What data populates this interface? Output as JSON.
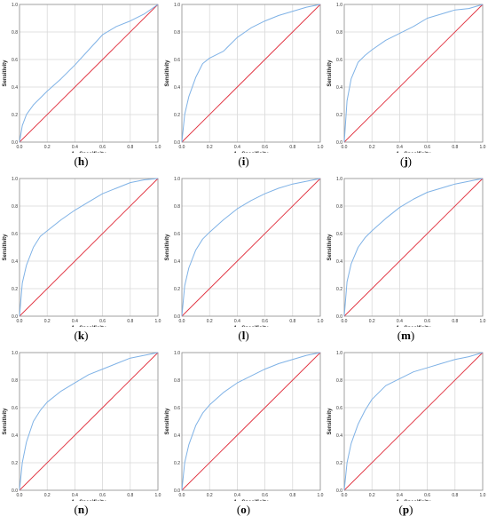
{
  "figure": {
    "x_axis_label": "1 - Specificity",
    "y_axis_label": "Sensitivity",
    "tick_labels": [
      "0.0",
      "0.2",
      "0.4",
      "0.6",
      "0.8",
      "1.0"
    ],
    "colors": {
      "roc": "#7fb2e6",
      "reference": "#e0303e",
      "grid": "#d9d9d9",
      "frame": "#8a8a8a"
    }
  },
  "chart_data": [
    {
      "panel": "h",
      "label_letter": "h",
      "type": "line",
      "xlabel": "1 - Specificity",
      "ylabel": "Sensitivity",
      "xlim": [
        0,
        1
      ],
      "ylim": [
        0,
        1
      ],
      "grid": true,
      "series": [
        {
          "x": [
            0,
            0.02,
            0.05,
            0.1,
            0.15,
            0.2,
            0.3,
            0.4,
            0.5,
            0.6,
            0.7,
            0.8,
            0.9,
            1.0
          ],
          "y": [
            0,
            0.12,
            0.2,
            0.27,
            0.32,
            0.37,
            0.46,
            0.56,
            0.67,
            0.78,
            0.84,
            0.88,
            0.93,
            1.0
          ]
        },
        {
          "x": [
            0,
            1
          ],
          "y": [
            0,
            1
          ]
        }
      ]
    },
    {
      "panel": "i",
      "label_letter": "i",
      "type": "line",
      "xlabel": "1 - Specificity",
      "ylabel": "Sensitivity",
      "xlim": [
        0,
        1
      ],
      "ylim": [
        0,
        1
      ],
      "grid": true,
      "series": [
        {
          "x": [
            0,
            0.02,
            0.05,
            0.1,
            0.15,
            0.2,
            0.3,
            0.4,
            0.5,
            0.6,
            0.7,
            0.8,
            0.9,
            1.0
          ],
          "y": [
            0,
            0.2,
            0.33,
            0.47,
            0.57,
            0.61,
            0.66,
            0.76,
            0.83,
            0.88,
            0.92,
            0.95,
            0.98,
            1.0
          ]
        },
        {
          "x": [
            0,
            1
          ],
          "y": [
            0,
            1
          ]
        }
      ]
    },
    {
      "panel": "j",
      "label_letter": "j",
      "type": "line",
      "xlabel": "1 - Specificity",
      "ylabel": "Sensitivity",
      "xlim": [
        0,
        1
      ],
      "ylim": [
        0,
        1
      ],
      "grid": true,
      "series": [
        {
          "x": [
            0,
            0.02,
            0.05,
            0.1,
            0.15,
            0.2,
            0.3,
            0.4,
            0.5,
            0.6,
            0.7,
            0.8,
            0.9,
            1.0
          ],
          "y": [
            0,
            0.3,
            0.46,
            0.58,
            0.63,
            0.67,
            0.74,
            0.79,
            0.84,
            0.9,
            0.93,
            0.96,
            0.97,
            1.0
          ]
        },
        {
          "x": [
            0,
            1
          ],
          "y": [
            0,
            1
          ]
        }
      ]
    },
    {
      "panel": "k",
      "label_letter": "k",
      "type": "line",
      "xlabel": "1 - Specificity",
      "ylabel": "Sensitivity",
      "xlim": [
        0,
        1
      ],
      "ylim": [
        0,
        1
      ],
      "grid": true,
      "series": [
        {
          "x": [
            0,
            0.02,
            0.05,
            0.1,
            0.15,
            0.2,
            0.3,
            0.4,
            0.5,
            0.6,
            0.7,
            0.8,
            0.9,
            1.0
          ],
          "y": [
            0,
            0.24,
            0.37,
            0.5,
            0.58,
            0.62,
            0.7,
            0.77,
            0.83,
            0.89,
            0.93,
            0.97,
            0.99,
            1.0
          ]
        },
        {
          "x": [
            0,
            1
          ],
          "y": [
            0,
            1
          ]
        }
      ]
    },
    {
      "panel": "l",
      "label_letter": "l",
      "type": "line",
      "xlabel": "1 - Specificity",
      "ylabel": "Sensitivity",
      "xlim": [
        0,
        1
      ],
      "ylim": [
        0,
        1
      ],
      "grid": true,
      "series": [
        {
          "x": [
            0,
            0.02,
            0.05,
            0.1,
            0.15,
            0.2,
            0.3,
            0.4,
            0.5,
            0.6,
            0.7,
            0.8,
            0.9,
            1.0
          ],
          "y": [
            0,
            0.22,
            0.35,
            0.48,
            0.56,
            0.61,
            0.7,
            0.78,
            0.84,
            0.89,
            0.93,
            0.96,
            0.98,
            1.0
          ]
        },
        {
          "x": [
            0,
            1
          ],
          "y": [
            0,
            1
          ]
        }
      ]
    },
    {
      "panel": "m",
      "label_letter": "m",
      "type": "line",
      "xlabel": "1 - Specificity",
      "ylabel": "Sensitivity",
      "xlim": [
        0,
        1
      ],
      "ylim": [
        0,
        1
      ],
      "grid": true,
      "series": [
        {
          "x": [
            0,
            0.02,
            0.05,
            0.1,
            0.15,
            0.2,
            0.3,
            0.4,
            0.5,
            0.6,
            0.7,
            0.8,
            0.9,
            1.0
          ],
          "y": [
            0,
            0.25,
            0.38,
            0.5,
            0.57,
            0.62,
            0.71,
            0.79,
            0.85,
            0.9,
            0.93,
            0.96,
            0.98,
            1.0
          ]
        },
        {
          "x": [
            0,
            1
          ],
          "y": [
            0,
            1
          ]
        }
      ]
    },
    {
      "panel": "n",
      "label_letter": "n",
      "type": "line",
      "xlabel": "1 - Specificity",
      "ylabel": "Sensitivity",
      "xlim": [
        0,
        1
      ],
      "ylim": [
        0,
        1
      ],
      "grid": true,
      "series": [
        {
          "x": [
            0,
            0.02,
            0.05,
            0.1,
            0.15,
            0.2,
            0.3,
            0.4,
            0.5,
            0.6,
            0.7,
            0.8,
            0.9,
            1.0
          ],
          "y": [
            0,
            0.2,
            0.35,
            0.5,
            0.58,
            0.64,
            0.72,
            0.78,
            0.84,
            0.88,
            0.92,
            0.96,
            0.98,
            1.0
          ]
        },
        {
          "x": [
            0,
            1
          ],
          "y": [
            0,
            1
          ]
        }
      ]
    },
    {
      "panel": "o",
      "label_letter": "o",
      "type": "line",
      "xlabel": "1 - Specificity",
      "ylabel": "Sensitivity",
      "xlim": [
        0,
        1
      ],
      "ylim": [
        0,
        1
      ],
      "grid": true,
      "series": [
        {
          "x": [
            0,
            0.02,
            0.05,
            0.1,
            0.15,
            0.2,
            0.3,
            0.4,
            0.5,
            0.6,
            0.7,
            0.8,
            0.9,
            1.0
          ],
          "y": [
            0,
            0.2,
            0.33,
            0.47,
            0.56,
            0.62,
            0.71,
            0.78,
            0.83,
            0.88,
            0.92,
            0.95,
            0.98,
            1.0
          ]
        },
        {
          "x": [
            0,
            1
          ],
          "y": [
            0,
            1
          ]
        }
      ]
    },
    {
      "panel": "p",
      "label_letter": "p",
      "type": "line",
      "xlabel": "1 - Specificity",
      "ylabel": "Sensitivity",
      "xlim": [
        0,
        1
      ],
      "ylim": [
        0,
        1
      ],
      "grid": true,
      "series": [
        {
          "x": [
            0,
            0.02,
            0.05,
            0.1,
            0.15,
            0.2,
            0.3,
            0.4,
            0.5,
            0.6,
            0.7,
            0.8,
            0.9,
            1.0
          ],
          "y": [
            0,
            0.2,
            0.34,
            0.48,
            0.58,
            0.66,
            0.76,
            0.81,
            0.86,
            0.89,
            0.92,
            0.95,
            0.97,
            1.0
          ]
        },
        {
          "x": [
            0,
            1
          ],
          "y": [
            0,
            1
          ]
        }
      ]
    }
  ]
}
